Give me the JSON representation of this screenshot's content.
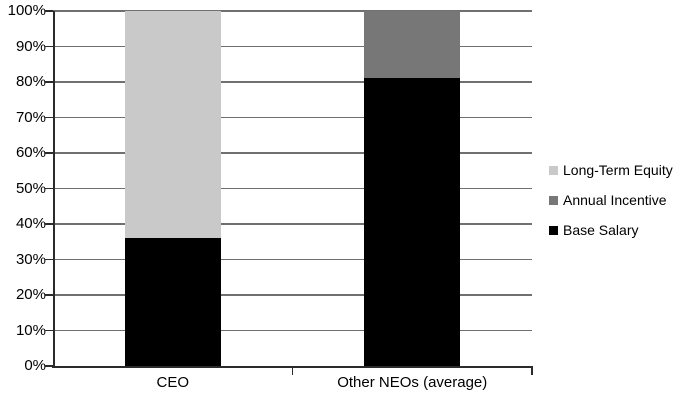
{
  "chart_data": {
    "type": "bar",
    "stacked": true,
    "title": "",
    "categories": [
      "CEO",
      "Other NEOs (average)"
    ],
    "series": [
      {
        "name": "Base Salary",
        "color": "#000000",
        "values": [
          36,
          81
        ]
      },
      {
        "name": "Annual Incentive",
        "color": "#777777",
        "values": [
          0,
          19
        ]
      },
      {
        "name": "Long-Term Equity",
        "color": "#c9c9c9",
        "values": [
          64,
          0
        ]
      }
    ],
    "ylim": [
      0,
      100
    ],
    "ytick_step": 10,
    "ytick_labels": [
      "0%",
      "10%",
      "20%",
      "30%",
      "40%",
      "50%",
      "60%",
      "70%",
      "80%",
      "90%",
      "100%"
    ],
    "xlabel": "",
    "ylabel": "",
    "grid": true,
    "legend": {
      "position": "right",
      "items": [
        {
          "label": "Long-Term Equity",
          "color": "#c9c9c9"
        },
        {
          "label": "Annual Incentive",
          "color": "#777777"
        },
        {
          "label": "Base Salary",
          "color": "#000000"
        }
      ]
    },
    "colors": {
      "gridline": "#707070",
      "axis": "#2b2b2b",
      "background": "#ffffff",
      "text": "#000000"
    }
  }
}
